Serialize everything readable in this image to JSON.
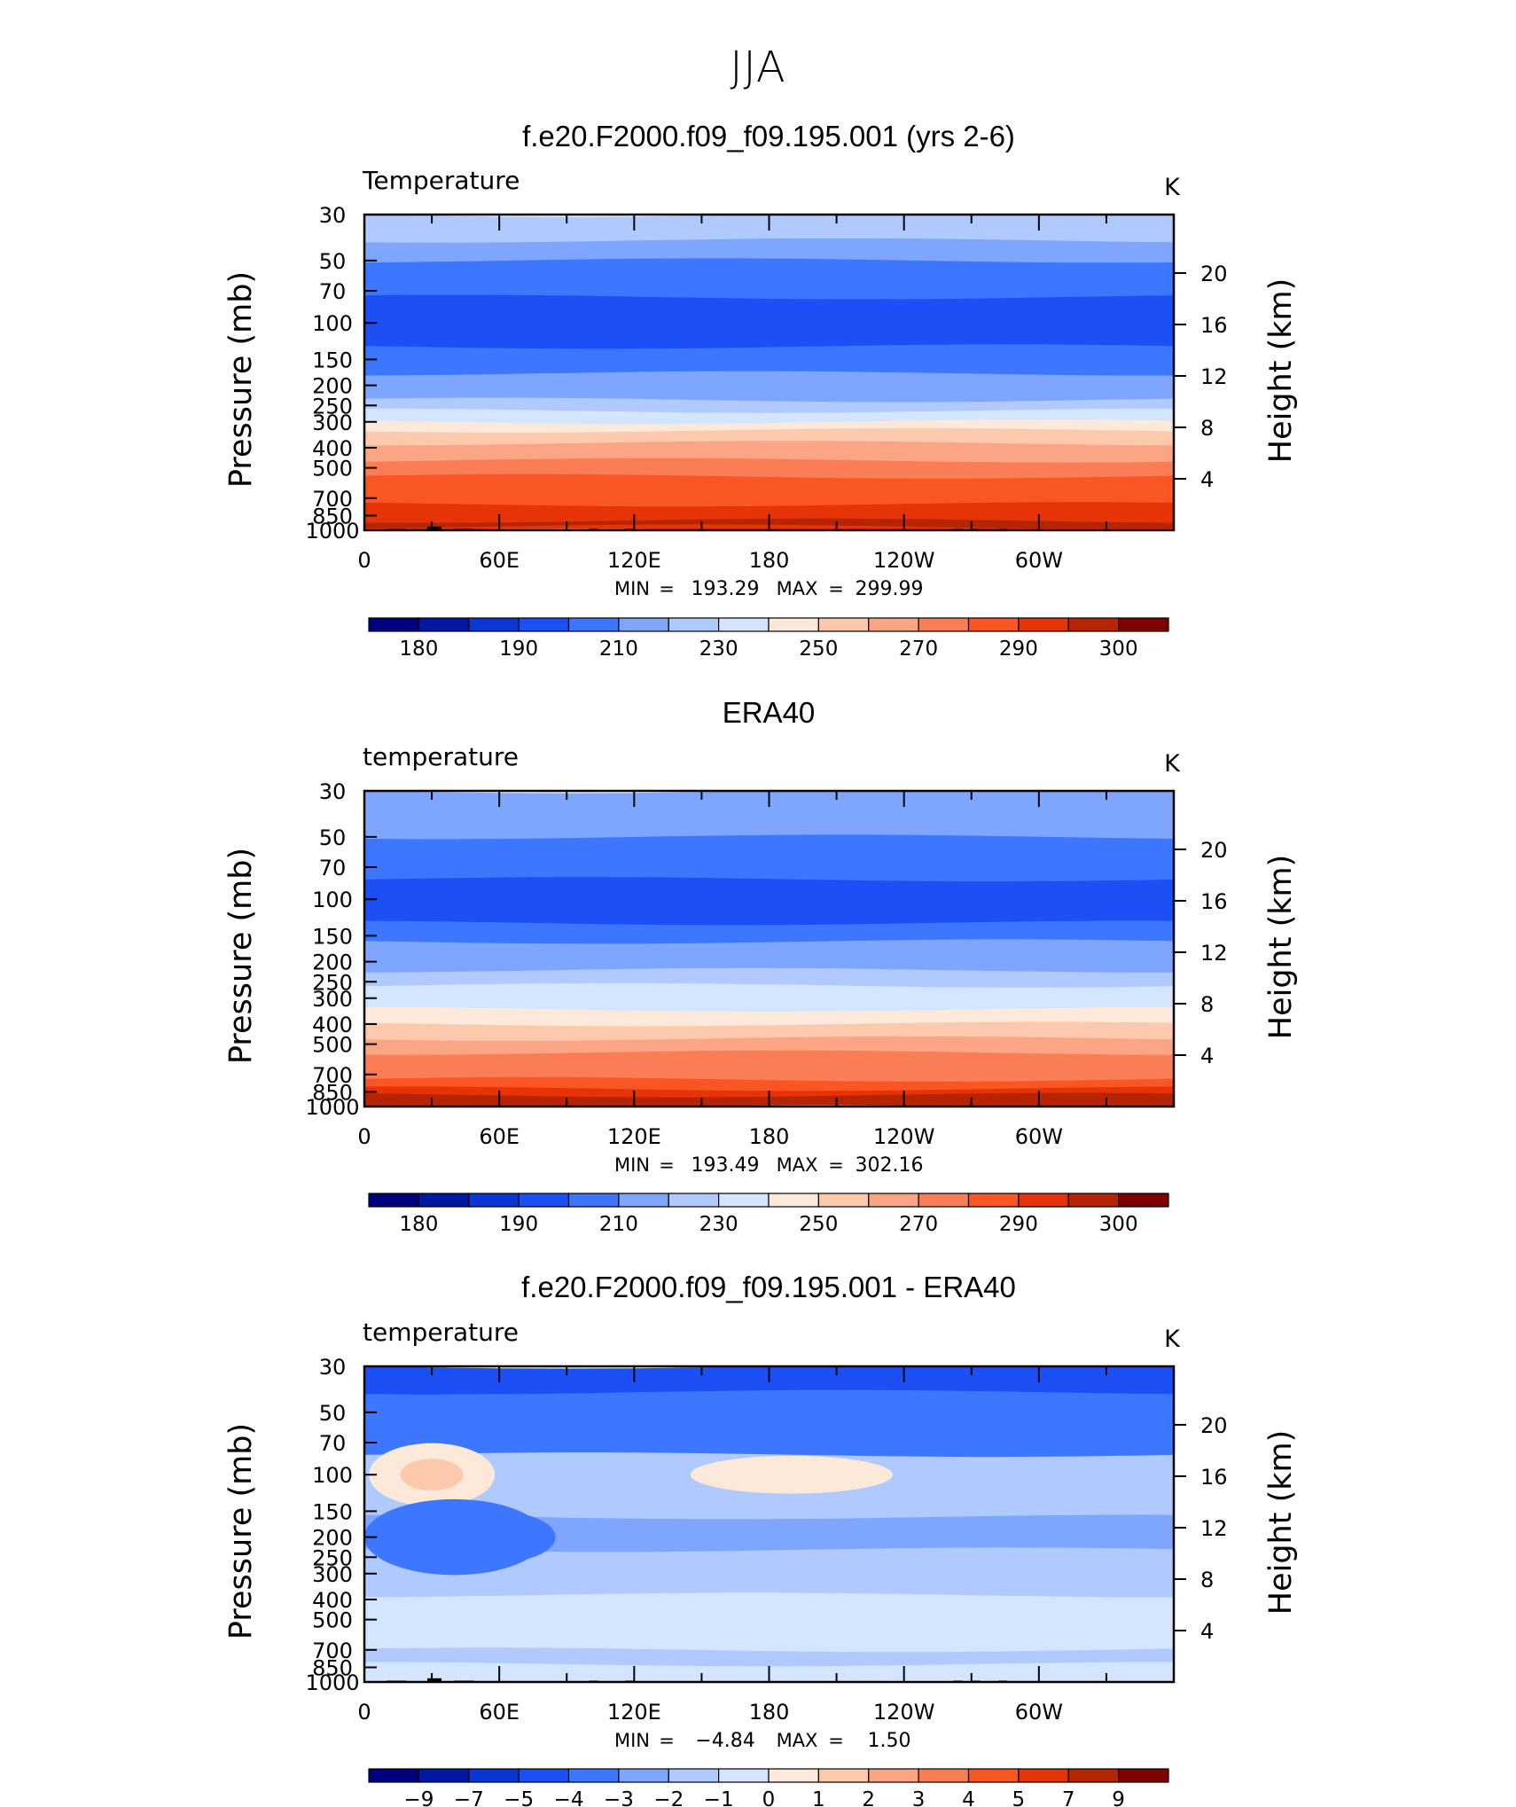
{
  "figure": {
    "title": "JJA",
    "colors": {
      "temperature_levels": [
        "#00007f",
        "#0018a3",
        "#0a36d6",
        "#1c4ff5",
        "#3d76ff",
        "#7ea6ff",
        "#b0c9ff",
        "#d4e6ff",
        "#fde9d9",
        "#fcc9ac",
        "#fba584",
        "#fb7d55",
        "#fa5623",
        "#e63307",
        "#b72402",
        "#7f0000"
      ],
      "difference_levels": [
        "#00007f",
        "#0018a3",
        "#0a36d6",
        "#1c4ff5",
        "#3d76ff",
        "#7ea6ff",
        "#b0c9ff",
        "#d4e6ff",
        "#fde9d9",
        "#fcc9ac",
        "#fba584",
        "#fb7d55",
        "#fa5623",
        "#e63307",
        "#b72402",
        "#7f0000"
      ]
    }
  },
  "chart_data": [
    {
      "type": "heatmap",
      "title": "f.e20.F2000.f09_f09.195.001 (yrs 2-6)",
      "left_label": "Temperature",
      "units": "K",
      "ylabel": "Pressure (mb)",
      "ylabel_right": "Height (km)",
      "yscale": "log",
      "ylim": [
        1000,
        30
      ],
      "y_ticks": [
        "30",
        "50",
        "70",
        "100",
        "150",
        "200",
        "250",
        "300",
        "400",
        "500",
        "700",
        "850",
        "1000"
      ],
      "y_tick_values": [
        30,
        50,
        70,
        100,
        150,
        200,
        250,
        300,
        400,
        500,
        700,
        850,
        1000
      ],
      "y_right_ticks": [
        "20",
        "16",
        "12",
        "8",
        "4"
      ],
      "y_right_values": [
        20,
        16,
        12,
        8,
        4
      ],
      "x_ticks": [
        "0",
        "60E",
        "120E",
        "180",
        "120W",
        "60W"
      ],
      "x_tick_values": [
        0,
        60,
        120,
        180,
        240,
        300
      ],
      "xlim": [
        0,
        360
      ],
      "stats": {
        "min_label": "MIN",
        "min": "193.29",
        "max_label": "MAX",
        "max": "299.99"
      },
      "band_pressures": [
        30,
        40,
        50,
        60,
        75,
        100,
        130,
        150,
        175,
        200,
        235,
        265,
        300,
        330,
        380,
        460,
        550,
        650,
        750,
        820,
        900,
        960,
        1000
      ],
      "band_levels": [
        6,
        5,
        4,
        4,
        3,
        3,
        4,
        4,
        5,
        5,
        6,
        7,
        8,
        9,
        10,
        11,
        12,
        12,
        13,
        13,
        14,
        13
      ],
      "colorbar": {
        "labels": [
          "180",
          "190",
          "210",
          "230",
          "250",
          "270",
          "290",
          "300"
        ],
        "boxes": 16,
        "label_positions": [
          1,
          3,
          5,
          7,
          9,
          11,
          13,
          15
        ]
      },
      "topography": [
        [
          10,
          1000,
          870
        ],
        [
          28,
          840,
          2
        ],
        [
          40,
          1000,
          870
        ],
        [
          100,
          1000,
          948
        ],
        [
          116,
          1000,
          948
        ],
        [
          262,
          1000,
          870
        ],
        [
          270,
          1000,
          870
        ],
        [
          282,
          1000,
          870
        ]
      ]
    },
    {
      "type": "heatmap",
      "title": "ERA40",
      "left_label": "temperature",
      "units": "K",
      "ylabel": "Pressure (mb)",
      "ylabel_right": "Height (km)",
      "yscale": "log",
      "ylim": [
        1000,
        30
      ],
      "y_ticks": [
        "30",
        "50",
        "70",
        "100",
        "150",
        "200",
        "250",
        "300",
        "400",
        "500",
        "700",
        "850",
        "1000"
      ],
      "y_tick_values": [
        30,
        50,
        70,
        100,
        150,
        200,
        250,
        300,
        400,
        500,
        700,
        850,
        1000
      ],
      "y_right_ticks": [
        "20",
        "16",
        "12",
        "8",
        "4"
      ],
      "y_right_values": [
        20,
        16,
        12,
        8,
        4
      ],
      "x_ticks": [
        "0",
        "60E",
        "120E",
        "180",
        "120W",
        "60W"
      ],
      "x_tick_values": [
        0,
        60,
        120,
        180,
        240,
        300
      ],
      "xlim": [
        0,
        360
      ],
      "stats": {
        "min_label": "MIN",
        "min": "193.49",
        "max_label": "MAX",
        "max": "302.16"
      },
      "band_pressures": [
        30,
        50,
        65,
        80,
        100,
        130,
        160,
        190,
        220,
        260,
        300,
        340,
        400,
        470,
        550,
        650,
        740,
        820,
        880,
        940,
        1000
      ],
      "band_levels": [
        5,
        4,
        4,
        3,
        3,
        4,
        5,
        5,
        6,
        7,
        7,
        8,
        9,
        10,
        11,
        11,
        12,
        13,
        14,
        14
      ],
      "colorbar": {
        "labels": [
          "180",
          "190",
          "210",
          "230",
          "250",
          "270",
          "290",
          "300"
        ],
        "boxes": 16,
        "label_positions": [
          1,
          3,
          5,
          7,
          9,
          11,
          13,
          15
        ]
      },
      "topography": []
    },
    {
      "type": "heatmap",
      "title": "f.e20.F2000.f09_f09.195.001 - ERA40",
      "left_label": "temperature",
      "units": "K",
      "ylabel": "Pressure (mb)",
      "ylabel_right": "Height (km)",
      "yscale": "log",
      "ylim": [
        1000,
        30
      ],
      "y_ticks": [
        "30",
        "50",
        "70",
        "100",
        "150",
        "200",
        "250",
        "300",
        "400",
        "500",
        "700",
        "850",
        "1000"
      ],
      "y_tick_values": [
        30,
        50,
        70,
        100,
        150,
        200,
        250,
        300,
        400,
        500,
        700,
        850,
        1000
      ],
      "y_right_ticks": [
        "20",
        "16",
        "12",
        "8",
        "4"
      ],
      "y_right_values": [
        20,
        16,
        12,
        8,
        4
      ],
      "x_ticks": [
        "0",
        "60E",
        "120E",
        "180",
        "120W",
        "60W"
      ],
      "x_tick_values": [
        0,
        60,
        120,
        180,
        240,
        300
      ],
      "xlim": [
        0,
        360
      ],
      "stats": {
        "min_label": "MIN",
        "min": "−4.84",
        "max_label": "MAX",
        "max": "1.50"
      },
      "band_pressures": [
        30,
        40,
        55,
        80,
        120,
        160,
        230,
        290,
        380,
        520,
        700,
        820,
        950,
        1000
      ],
      "band_levels": [
        3,
        4,
        4,
        6,
        6,
        5,
        6,
        6,
        7,
        7,
        6,
        7,
        7
      ],
      "blobs": [
        {
          "x": 30,
          "p": 100,
          "dx": 28,
          "dp": 0.1,
          "level": 8
        },
        {
          "x": 30,
          "p": 100,
          "dx": 14,
          "dp": 0.05,
          "level": 9
        },
        {
          "x": 190,
          "p": 100,
          "dx": 45,
          "dp": 0.06,
          "level": 8
        },
        {
          "x": 190,
          "p": 100,
          "dx": 28,
          "dp": 0.04,
          "level": 8
        },
        {
          "x": 40,
          "p": 200,
          "dx": 40,
          "dp": 0.12,
          "level": 4
        },
        {
          "x": 60,
          "p": 200,
          "dx": 25,
          "dp": 0.08,
          "level": 4
        }
      ],
      "colorbar": {
        "labels": [
          "−9",
          "−7",
          "−5",
          "−4",
          "−3",
          "−2",
          "−1",
          "0",
          "1",
          "2",
          "3",
          "4",
          "5",
          "7",
          "9"
        ],
        "boxes": 16,
        "label_positions": [
          1,
          2,
          3,
          4,
          5,
          6,
          7,
          8,
          9,
          10,
          11,
          12,
          13,
          14,
          15
        ]
      },
      "topography": [
        [
          10,
          1000,
          870
        ],
        [
          28,
          840,
          2
        ],
        [
          40,
          1000,
          870
        ],
        [
          100,
          1000,
          948
        ],
        [
          116,
          1000,
          948
        ],
        [
          262,
          1000,
          870
        ],
        [
          270,
          1000,
          870
        ],
        [
          282,
          1000,
          870
        ]
      ]
    }
  ]
}
